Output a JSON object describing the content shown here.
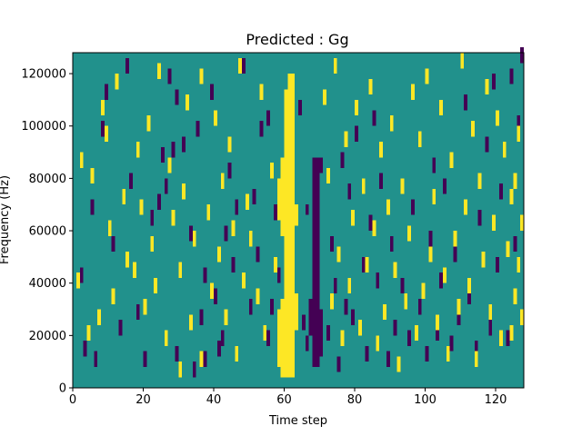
{
  "chart_data": {
    "type": "heatmap",
    "title": "Predicted : Gg",
    "xlabel": "Time step",
    "ylabel": "Frequency (Hz)",
    "xlim": [
      0,
      128
    ],
    "ylim": [
      0,
      128000
    ],
    "n_time_steps": 128,
    "n_freq_bins": 64,
    "freq_bin_hz": 2000,
    "x_ticks": [
      0,
      20,
      40,
      60,
      80,
      100,
      120
    ],
    "y_ticks": [
      0,
      20000,
      40000,
      60000,
      80000,
      100000,
      120000
    ],
    "x_tick_labels": [
      "0",
      "20",
      "40",
      "60",
      "80",
      "100",
      "120"
    ],
    "y_tick_labels": [
      "0",
      "20000",
      "40000",
      "60000",
      "80000",
      "100000",
      "120000"
    ],
    "colormap": "viridis",
    "levels": {
      "low": "#440154",
      "mid": "#21918c",
      "high": "#fde725"
    },
    "background_level": "mid",
    "note_bands": [
      {
        "level": "high",
        "t_start": 60,
        "t_end": 63,
        "f_start": 4000,
        "f_end": 114000
      },
      {
        "level": "high",
        "t_start": 59,
        "t_end": 60,
        "f_start": 4000,
        "f_end": 34000
      },
      {
        "level": "high",
        "t_start": 59,
        "t_end": 60,
        "f_start": 58000,
        "f_end": 88000
      },
      {
        "level": "high",
        "t_start": 58,
        "t_end": 59,
        "f_start": 64000,
        "f_end": 80000
      },
      {
        "level": "high",
        "t_start": 58,
        "t_end": 59,
        "f_start": 8000,
        "f_end": 30000
      },
      {
        "level": "high",
        "t_start": 61,
        "t_end": 63,
        "f_start": 112000,
        "f_end": 120000
      },
      {
        "level": "high",
        "t_start": 63,
        "t_end": 64,
        "f_start": 22000,
        "f_end": 36000
      },
      {
        "level": "high",
        "t_start": 63,
        "t_end": 64,
        "f_start": 62000,
        "f_end": 70000
      },
      {
        "level": "low",
        "t_start": 68,
        "t_end": 70,
        "f_start": 8000,
        "f_end": 88000
      },
      {
        "level": "low",
        "t_start": 67,
        "t_end": 68,
        "f_start": 20000,
        "f_end": 34000
      },
      {
        "level": "low",
        "t_start": 70,
        "t_end": 71,
        "f_start": 12000,
        "f_end": 30000
      },
      {
        "level": "low",
        "t_start": 66,
        "t_end": 67,
        "f_start": 66000,
        "f_end": 70000
      }
    ],
    "low_cells": [
      [
        3,
        6
      ],
      [
        6,
        4
      ],
      [
        9,
        55
      ],
      [
        13,
        10
      ],
      [
        16,
        38
      ],
      [
        20,
        4
      ],
      [
        22,
        31
      ],
      [
        25,
        43
      ],
      [
        26,
        37
      ],
      [
        27,
        58
      ],
      [
        28,
        44
      ],
      [
        29,
        54
      ],
      [
        29,
        5
      ],
      [
        33,
        28
      ],
      [
        34,
        2
      ],
      [
        35,
        48
      ],
      [
        37,
        20
      ],
      [
        37,
        4
      ],
      [
        39,
        55
      ],
      [
        40,
        16
      ],
      [
        41,
        6
      ],
      [
        42,
        8
      ],
      [
        43,
        28
      ],
      [
        44,
        40
      ],
      [
        45,
        22
      ],
      [
        48,
        60
      ],
      [
        50,
        14
      ],
      [
        51,
        35
      ],
      [
        52,
        24
      ],
      [
        53,
        48
      ],
      [
        55,
        8
      ],
      [
        56,
        14
      ],
      [
        57,
        32
      ],
      [
        58,
        20
      ],
      [
        64,
        52
      ],
      [
        65,
        11
      ],
      [
        66,
        7
      ],
      [
        72,
        9
      ],
      [
        73,
        26
      ],
      [
        74,
        18
      ],
      [
        75,
        3
      ],
      [
        76,
        42
      ],
      [
        77,
        14
      ],
      [
        78,
        36
      ],
      [
        79,
        12
      ],
      [
        80,
        47
      ],
      [
        82,
        22
      ],
      [
        83,
        5
      ],
      [
        84,
        30
      ],
      [
        86,
        19
      ],
      [
        87,
        38
      ],
      [
        89,
        4
      ],
      [
        90,
        26
      ],
      [
        91,
        10
      ],
      [
        93,
        18
      ],
      [
        95,
        8
      ],
      [
        96,
        33
      ],
      [
        98,
        14
      ],
      [
        100,
        5
      ],
      [
        101,
        27
      ],
      [
        103,
        9
      ],
      [
        104,
        19
      ],
      [
        105,
        37
      ],
      [
        107,
        7
      ],
      [
        108,
        24
      ],
      [
        109,
        12
      ],
      [
        111,
        53
      ],
      [
        112,
        16
      ],
      [
        114,
        6
      ],
      [
        115,
        31
      ],
      [
        117,
        45
      ],
      [
        118,
        10
      ],
      [
        120,
        22
      ],
      [
        121,
        36
      ],
      [
        123,
        8
      ],
      [
        124,
        58
      ],
      [
        125,
        26
      ],
      [
        126,
        49
      ],
      [
        127,
        62
      ],
      [
        2,
        20
      ],
      [
        5,
        33
      ],
      [
        8,
        48
      ],
      [
        11,
        26
      ],
      [
        15,
        60
      ],
      [
        18,
        13
      ],
      [
        24,
        34
      ],
      [
        31,
        45
      ],
      [
        36,
        12
      ],
      [
        46,
        33
      ],
      [
        55,
        50
      ],
      [
        70,
        41
      ],
      [
        85,
        50
      ],
      [
        102,
        41
      ],
      [
        119,
        57
      ]
    ],
    "high_cells": [
      [
        1,
        19
      ],
      [
        2,
        42
      ],
      [
        4,
        9
      ],
      [
        5,
        39
      ],
      [
        7,
        12
      ],
      [
        8,
        52
      ],
      [
        9,
        47
      ],
      [
        10,
        29
      ],
      [
        11,
        16
      ],
      [
        12,
        57
      ],
      [
        14,
        35
      ],
      [
        15,
        23
      ],
      [
        17,
        21
      ],
      [
        18,
        44
      ],
      [
        19,
        33
      ],
      [
        20,
        14
      ],
      [
        21,
        49
      ],
      [
        22,
        26
      ],
      [
        23,
        18
      ],
      [
        24,
        59
      ],
      [
        26,
        8
      ],
      [
        27,
        41
      ],
      [
        28,
        31
      ],
      [
        30,
        2
      ],
      [
        30,
        21
      ],
      [
        31,
        36
      ],
      [
        32,
        53
      ],
      [
        33,
        11
      ],
      [
        34,
        27
      ],
      [
        36,
        4
      ],
      [
        36,
        58
      ],
      [
        38,
        32
      ],
      [
        39,
        17
      ],
      [
        40,
        50
      ],
      [
        41,
        24
      ],
      [
        42,
        38
      ],
      [
        43,
        12
      ],
      [
        44,
        45
      ],
      [
        45,
        29
      ],
      [
        46,
        5
      ],
      [
        47,
        60
      ],
      [
        48,
        19
      ],
      [
        49,
        34
      ],
      [
        50,
        27
      ],
      [
        52,
        16
      ],
      [
        53,
        55
      ],
      [
        54,
        9
      ],
      [
        56,
        40
      ],
      [
        57,
        22
      ],
      [
        71,
        54
      ],
      [
        72,
        39
      ],
      [
        73,
        15
      ],
      [
        74,
        60
      ],
      [
        75,
        24
      ],
      [
        76,
        8
      ],
      [
        77,
        46
      ],
      [
        78,
        18
      ],
      [
        79,
        31
      ],
      [
        80,
        52
      ],
      [
        81,
        10
      ],
      [
        82,
        37
      ],
      [
        83,
        22
      ],
      [
        84,
        56
      ],
      [
        85,
        29
      ],
      [
        86,
        7
      ],
      [
        87,
        44
      ],
      [
        88,
        13
      ],
      [
        89,
        33
      ],
      [
        90,
        49
      ],
      [
        91,
        21
      ],
      [
        92,
        3
      ],
      [
        93,
        37
      ],
      [
        94,
        15
      ],
      [
        95,
        28
      ],
      [
        96,
        55
      ],
      [
        97,
        9
      ],
      [
        98,
        46
      ],
      [
        99,
        17
      ],
      [
        100,
        58
      ],
      [
        101,
        24
      ],
      [
        102,
        35
      ],
      [
        103,
        11
      ],
      [
        104,
        52
      ],
      [
        105,
        20
      ],
      [
        106,
        5
      ],
      [
        107,
        42
      ],
      [
        108,
        27
      ],
      [
        109,
        14
      ],
      [
        110,
        61
      ],
      [
        111,
        33
      ],
      [
        112,
        18
      ],
      [
        113,
        48
      ],
      [
        114,
        4
      ],
      [
        115,
        38
      ],
      [
        116,
        23
      ],
      [
        117,
        56
      ],
      [
        118,
        13
      ],
      [
        119,
        30
      ],
      [
        120,
        50
      ],
      [
        121,
        8
      ],
      [
        122,
        44
      ],
      [
        123,
        25
      ],
      [
        124,
        35
      ],
      [
        125,
        16
      ],
      [
        126,
        47
      ],
      [
        127,
        30
      ],
      [
        126,
        22
      ],
      [
        127,
        12
      ],
      [
        125,
        38
      ],
      [
        124,
        9
      ]
    ]
  }
}
